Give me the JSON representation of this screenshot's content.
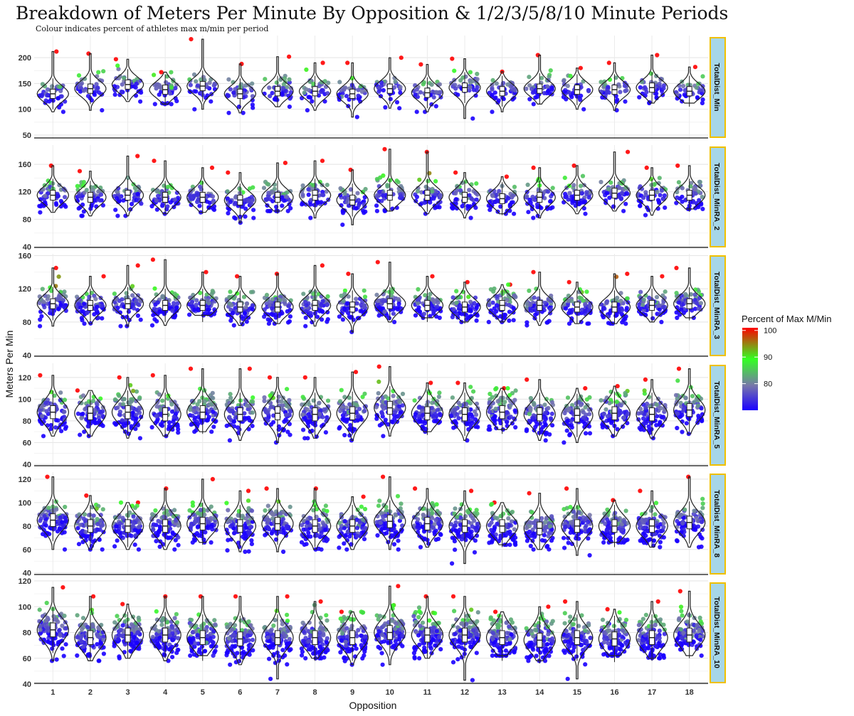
{
  "chart_data": {
    "type": "scatter",
    "subtype": "jittered violin + boxplot, faceted",
    "title": "Breakdown of Meters Per Minute By Opposition & 1/2/3/5/8/10 Minute Periods",
    "subtitle": "Colour indicates percent of athletes max m/min per period",
    "xlabel": "Opposition",
    "ylabel": "Meters Per Min",
    "categories": [
      "1",
      "2",
      "3",
      "4",
      "5",
      "6",
      "7",
      "8",
      "9",
      "10",
      "11",
      "12",
      "13",
      "14",
      "15",
      "16",
      "17",
      "18"
    ],
    "legend": {
      "title": "Percent of Max M/Min",
      "position": "right",
      "range": [
        70,
        101
      ],
      "ticks": [
        {
          "value": 100,
          "label": "100"
        },
        {
          "value": 90,
          "label": "90"
        },
        {
          "value": 80,
          "label": "80"
        }
      ],
      "colors": [
        "#1a00ff",
        "#7777aa",
        "#33ff22",
        "#ff0000"
      ]
    },
    "series": [
      {
        "name": "TotalDist_Min",
        "ylim": [
          43,
          243
        ],
        "yticks": [
          {
            "value": 50,
            "label": "50"
          },
          {
            "value": 100,
            "label": "100"
          },
          {
            "value": 150,
            "label": "150"
          },
          {
            "value": 200,
            "label": "200"
          }
        ],
        "medians": [
          130,
          140,
          148,
          138,
          145,
          130,
          135,
          135,
          130,
          140,
          132,
          142,
          135,
          140,
          138,
          138,
          142,
          135
        ],
        "spread": 15,
        "max": [
          212,
          208,
          197,
          172,
          236,
          188,
          202,
          190,
          190,
          200,
          187,
          198,
          173,
          205,
          180,
          190,
          205,
          182
        ],
        "min": [
          95,
          98,
          115,
          110,
          100,
          93,
          105,
          98,
          85,
          102,
          95,
          82,
          95,
          110,
          100,
          98,
          112,
          112
        ]
      },
      {
        "name": "TotalDist_MinRA_2",
        "ylim": [
          38,
          188
        ],
        "yticks": [
          {
            "value": 40,
            "label": "40"
          },
          {
            "value": 80,
            "label": "80"
          },
          {
            "value": 120,
            "label": "120"
          },
          {
            "value": 160,
            "label": "160"
          }
        ],
        "medians": [
          115,
          112,
          115,
          112,
          112,
          108,
          112,
          115,
          108,
          115,
          115,
          112,
          110,
          112,
          115,
          118,
          115,
          115
        ],
        "spread": 12,
        "max": [
          158,
          150,
          172,
          165,
          155,
          148,
          162,
          165,
          152,
          182,
          178,
          148,
          142,
          155,
          158,
          178,
          155,
          158
        ],
        "min": [
          90,
          85,
          85,
          88,
          90,
          75,
          92,
          82,
          72,
          92,
          88,
          82,
          88,
          82,
          88,
          92,
          86,
          95
        ]
      },
      {
        "name": "TotalDist_MinRA_3",
        "ylim": [
          38,
          162
        ],
        "yticks": [
          {
            "value": 40,
            "label": "40"
          },
          {
            "value": 80,
            "label": "80"
          },
          {
            "value": 120,
            "label": "120"
          },
          {
            "value": 160,
            "label": "160"
          }
        ],
        "medians": [
          102,
          100,
          102,
          100,
          100,
          98,
          98,
          100,
          98,
          102,
          100,
          98,
          100,
          100,
          98,
          98,
          100,
          102
        ],
        "spread": 10,
        "max": [
          145,
          135,
          148,
          155,
          140,
          135,
          138,
          148,
          138,
          152,
          135,
          128,
          125,
          140,
          128,
          138,
          135,
          145
        ],
        "min": [
          75,
          78,
          75,
          76,
          88,
          76,
          78,
          75,
          68,
          80,
          85,
          80,
          80,
          76,
          78,
          78,
          80,
          85
        ]
      },
      {
        "name": "TotalDist_MinRA_5",
        "ylim": [
          38,
          133
        ],
        "yticks": [
          {
            "value": 40,
            "label": "40"
          },
          {
            "value": 60,
            "label": "60"
          },
          {
            "value": 80,
            "label": "80"
          },
          {
            "value": 100,
            "label": "100"
          },
          {
            "value": 120,
            "label": "120"
          }
        ],
        "medians": [
          88,
          87,
          88,
          86,
          88,
          86,
          87,
          86,
          87,
          92,
          87,
          86,
          88,
          86,
          85,
          87,
          86,
          90
        ],
        "spread": 10,
        "max": [
          122,
          108,
          120,
          122,
          128,
          128,
          120,
          120,
          125,
          130,
          115,
          115,
          110,
          118,
          110,
          112,
          118,
          128
        ],
        "min": [
          66,
          66,
          64,
          66,
          70,
          62,
          60,
          64,
          62,
          66,
          70,
          62,
          72,
          62,
          60,
          66,
          64,
          68
        ]
      },
      {
        "name": "TotalDist_MinRA_8",
        "ylim": [
          38,
          126
        ],
        "yticks": [
          {
            "value": 40,
            "label": "40"
          },
          {
            "value": 60,
            "label": "60"
          },
          {
            "value": 80,
            "label": "80"
          },
          {
            "value": 100,
            "label": "100"
          },
          {
            "value": 120,
            "label": "120"
          }
        ],
        "medians": [
          85,
          80,
          80,
          80,
          82,
          80,
          82,
          80,
          80,
          84,
          82,
          80,
          80,
          78,
          80,
          80,
          80,
          83
        ],
        "spread": 9,
        "max": [
          122,
          106,
          100,
          112,
          120,
          110,
          112,
          112,
          105,
          122,
          112,
          110,
          100,
          108,
          112,
          102,
          110,
          122
        ],
        "min": [
          60,
          60,
          60,
          60,
          66,
          58,
          58,
          60,
          60,
          60,
          62,
          48,
          64,
          60,
          55,
          66,
          62,
          62
        ]
      },
      {
        "name": "TotalDist_MinRA_10",
        "ylim": [
          40,
          120
        ],
        "yticks": [
          {
            "value": 40,
            "label": "40"
          },
          {
            "value": 60,
            "label": "60"
          },
          {
            "value": 80,
            "label": "80"
          },
          {
            "value": 100,
            "label": "100"
          },
          {
            "value": 120,
            "label": "120"
          }
        ],
        "medians": [
          82,
          76,
          78,
          78,
          76,
          75,
          76,
          76,
          76,
          80,
          78,
          78,
          76,
          74,
          76,
          75,
          76,
          78
        ],
        "spread": 9,
        "max": [
          115,
          108,
          102,
          108,
          108,
          108,
          108,
          104,
          96,
          116,
          108,
          108,
          96,
          100,
          104,
          98,
          104,
          112
        ],
        "min": [
          58,
          58,
          60,
          58,
          62,
          55,
          44,
          60,
          55,
          55,
          60,
          43,
          62,
          58,
          44,
          62,
          60,
          62
        ]
      }
    ]
  }
}
